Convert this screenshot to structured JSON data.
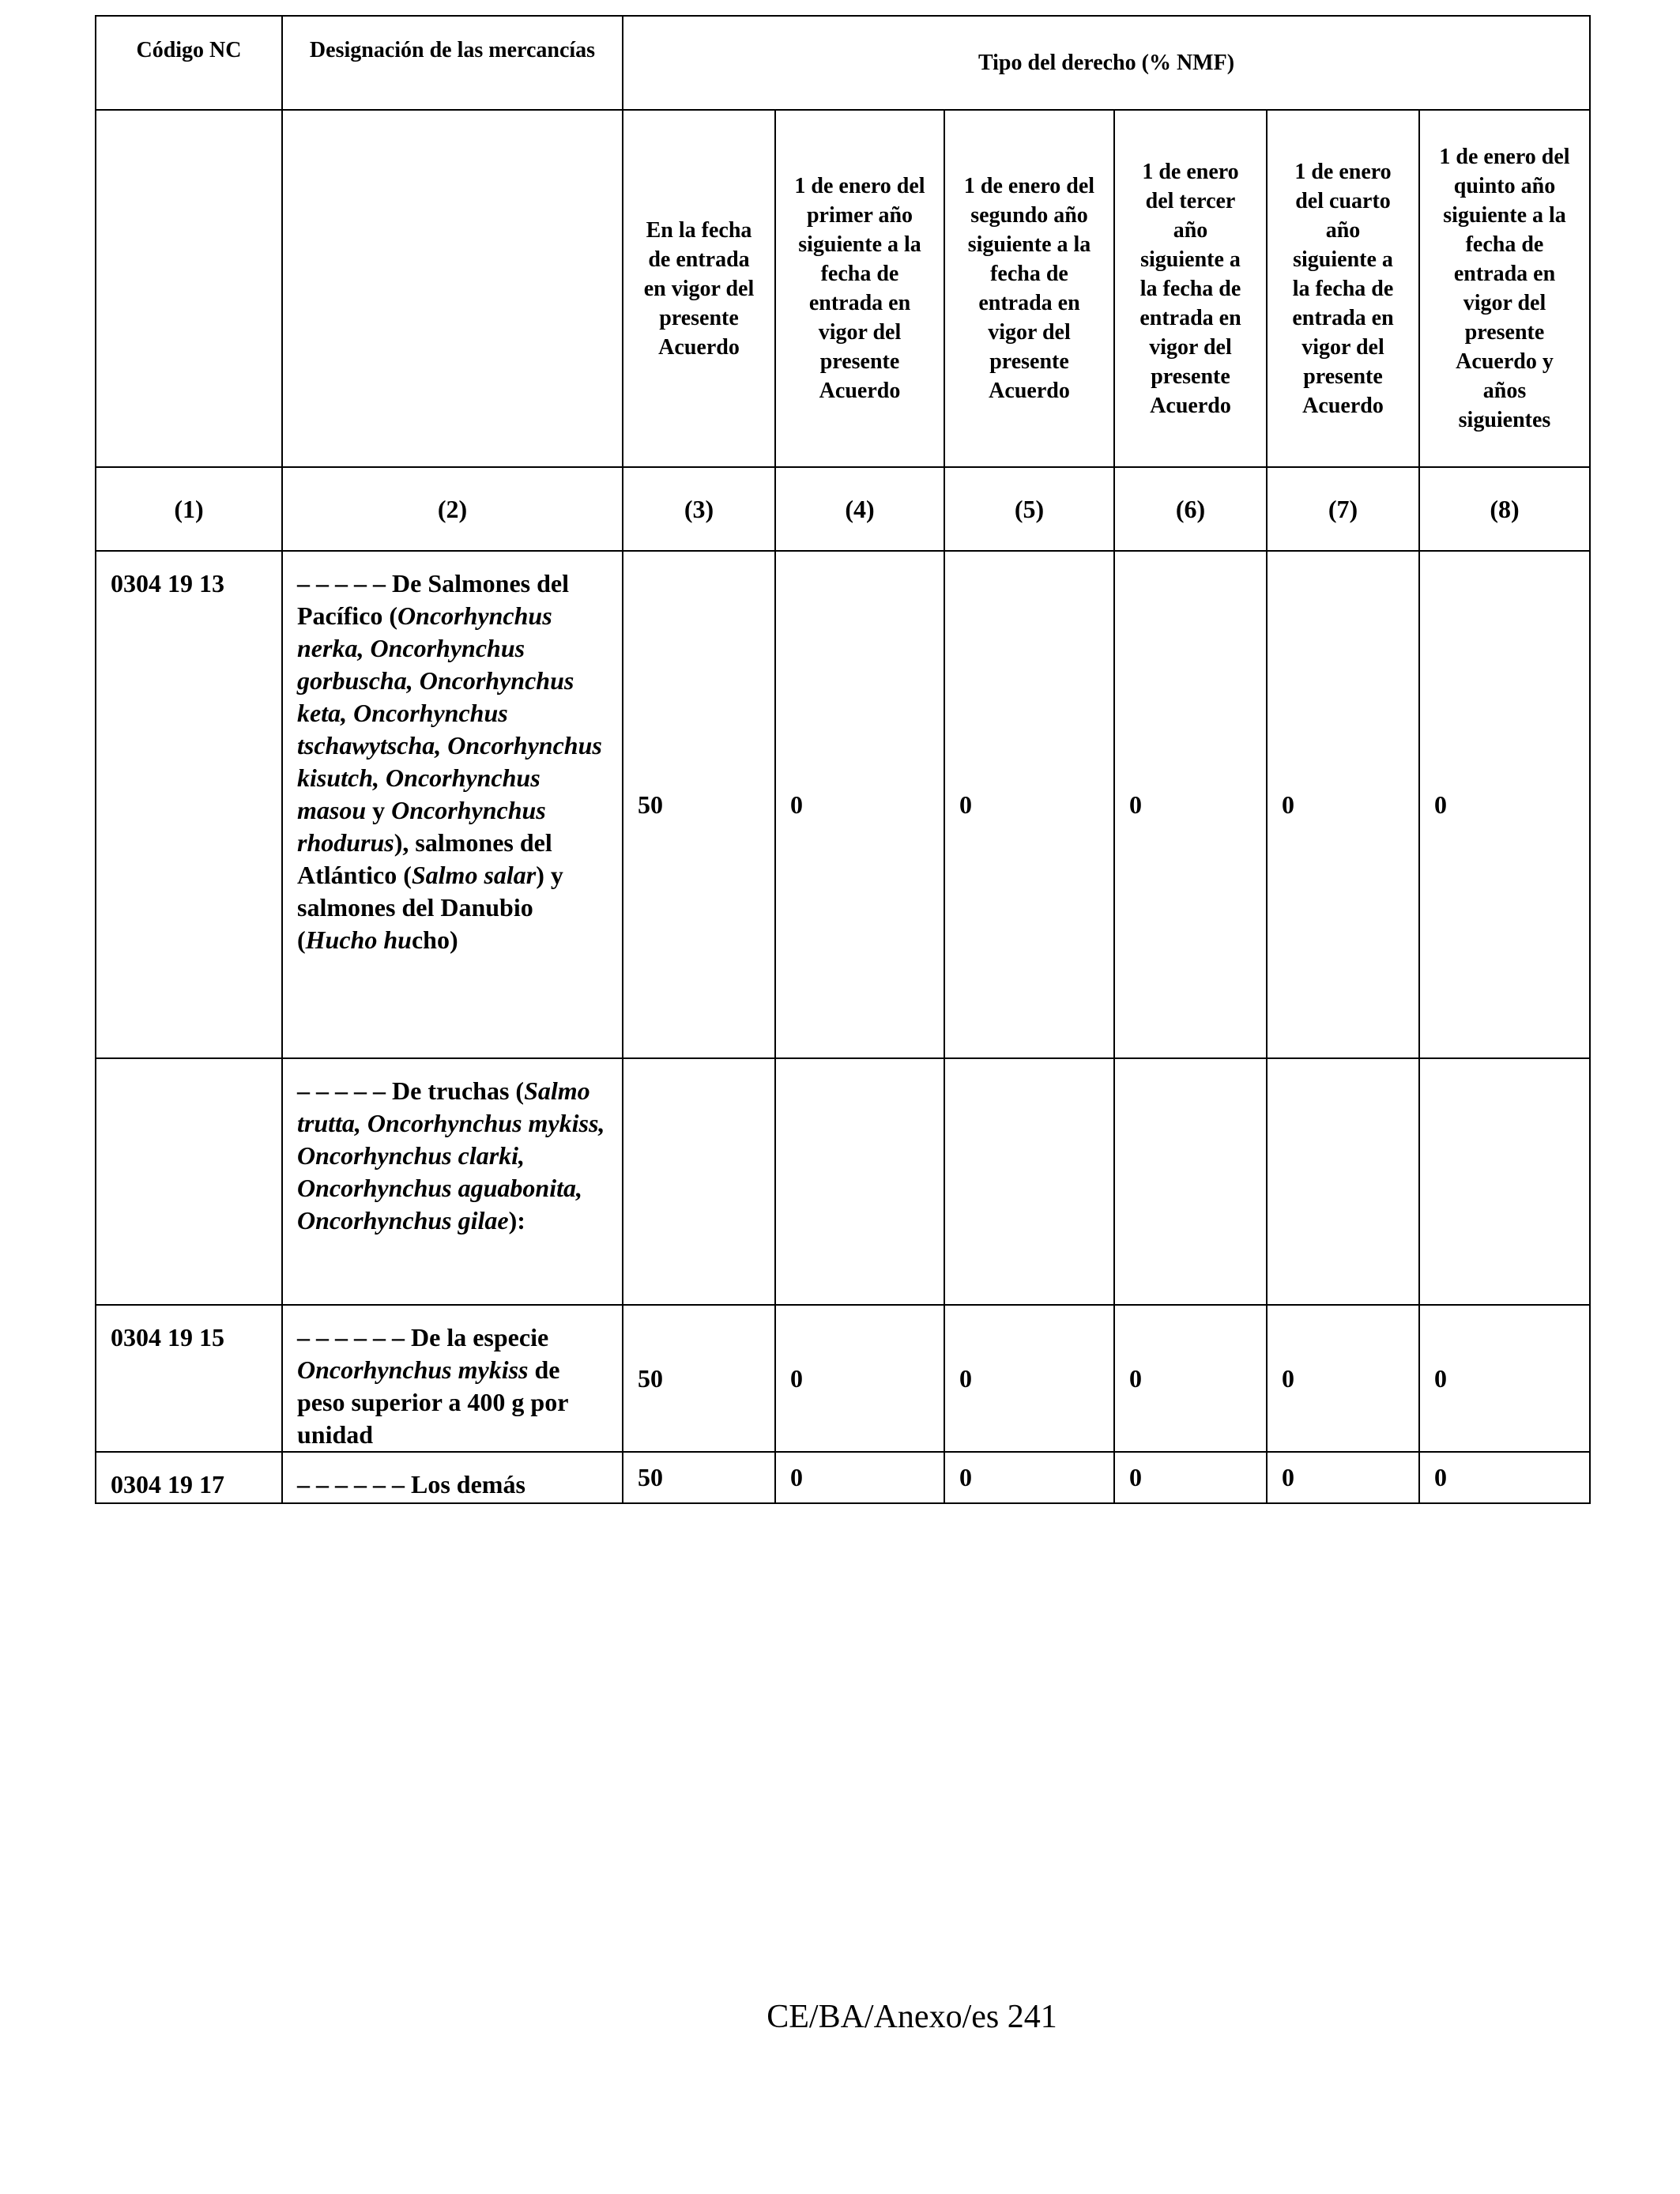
{
  "table": {
    "headers": {
      "code": "Código NC",
      "designation": "Designación de las mercancías",
      "duty_type": "Tipo del derecho (% NMF)",
      "sub": [
        "En la fecha de entrada en vigor del presente Acuerdo",
        "1 de enero del primer año siguiente a la fecha de entrada en vigor del presente Acuerdo",
        "1 de enero del segundo año siguiente a la fecha de entrada en vigor del presente Acuerdo",
        "1 de enero del tercer año siguiente a la fecha de entrada en vigor del presente Acuerdo",
        "1 de enero del cuarto año siguiente a la fecha de entrada en vigor del presente Acuerdo",
        "1 de enero del quinto año siguiente a la fecha de entrada en vigor del presente Acuerdo y años siguientes"
      ],
      "numbers": [
        "(1)",
        "(2)",
        "(3)",
        "(4)",
        "(5)",
        "(6)",
        "(7)",
        "(8)"
      ]
    },
    "rows": [
      {
        "code": "0304 19 13",
        "description": [
          {
            "text": "– – – – – De Salmones del Pacífico (",
            "italic": false
          },
          {
            "text": "Oncorhynchus nerka, Oncorhynchus gorbuscha, Oncorhynchus keta, Oncorhynchus tschawytscha, Oncorhynchus kisutch, Oncorhynchus masou",
            "italic": true
          },
          {
            "text": " y ",
            "italic": false
          },
          {
            "text": "Oncorhynchus rhodurus",
            "italic": true
          },
          {
            "text": "), salmones del Atlántico (",
            "italic": false
          },
          {
            "text": "Salmo salar",
            "italic": true
          },
          {
            "text": ") y salmones del Danubio (",
            "italic": false
          },
          {
            "text": "Hucho hu",
            "italic": true
          },
          {
            "text": "cho)",
            "italic": false
          }
        ],
        "values": [
          "50",
          "0",
          "0",
          "0",
          "0",
          "0"
        ]
      },
      {
        "code": "",
        "description": [
          {
            "text": "– – – – – De truchas (",
            "italic": false
          },
          {
            "text": "Salmo trutta, Oncorhynchus mykiss, Oncorhynchus clarki, Oncorhynchus aguabonita, Oncorhynchus gilae",
            "italic": true
          },
          {
            "text": "):",
            "italic": false
          }
        ],
        "values": [
          "",
          "",
          "",
          "",
          "",
          ""
        ]
      },
      {
        "code": "0304 19 15",
        "description": [
          {
            "text": "– – – – – – De la especie ",
            "italic": false
          },
          {
            "text": "Oncorhynchus mykiss",
            "italic": true
          },
          {
            "text": " de peso superior a 400 g por unidad",
            "italic": false
          }
        ],
        "values": [
          "50",
          "0",
          "0",
          "0",
          "0",
          "0"
        ]
      },
      {
        "code": "0304 19 17",
        "description": [
          {
            "text": "– – – – – – Los demás",
            "italic": false
          }
        ],
        "values": [
          "50",
          "0",
          "0",
          "0",
          "0",
          "0"
        ]
      }
    ]
  },
  "footer": "CE/BA/Anexo/es 241"
}
